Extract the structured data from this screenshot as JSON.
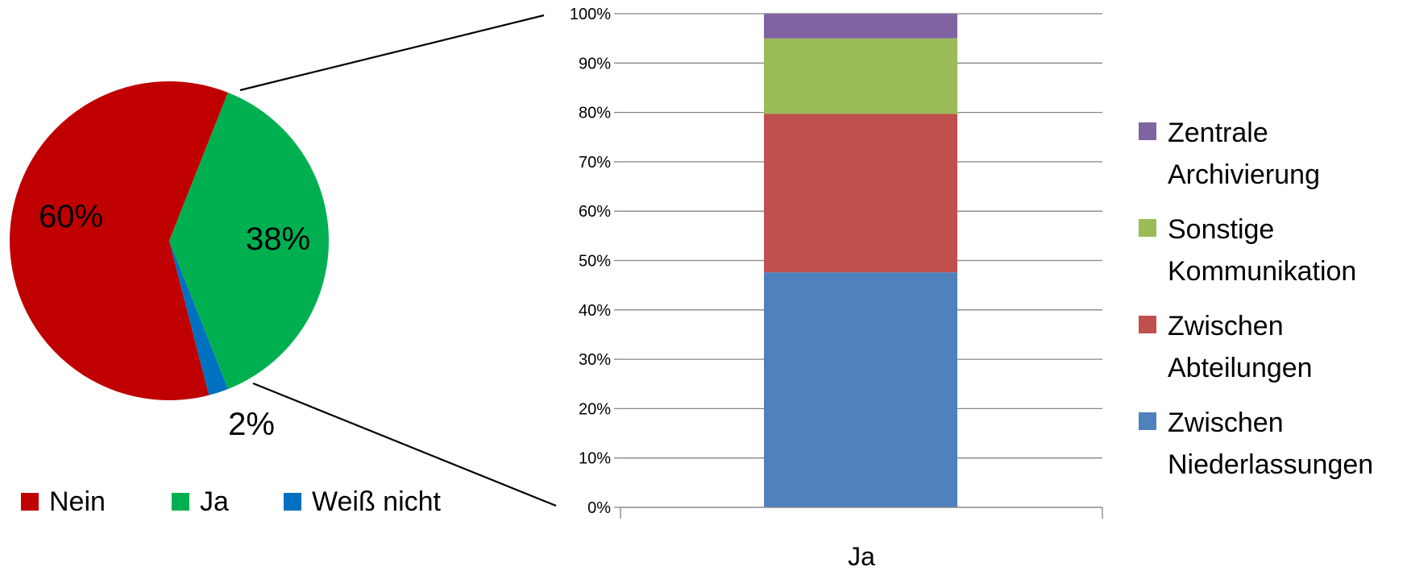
{
  "chart_data": [
    {
      "type": "pie",
      "slices": [
        {
          "label": "Nein",
          "value": 60,
          "color": "#C00000",
          "data_label": "60%"
        },
        {
          "label": "Ja",
          "value": 38,
          "color": "#00B050",
          "data_label": "38%"
        },
        {
          "label": "Weiß nicht",
          "value": 2,
          "color": "#0070C0",
          "data_label": "2%"
        }
      ],
      "legend": {
        "position": "bottom",
        "entries": [
          "Nein",
          "Ja",
          "Weiß nicht"
        ]
      }
    },
    {
      "type": "bar",
      "stacked": true,
      "categories": [
        "Ja"
      ],
      "ylim": [
        0,
        100
      ],
      "yticks": [
        "0%",
        "10%",
        "20%",
        "30%",
        "40%",
        "50%",
        "60%",
        "70%",
        "80%",
        "90%",
        "100%"
      ],
      "grid": true,
      "series": [
        {
          "name": "Zwischen Niederlassungen",
          "name_lines": [
            "Zwischen",
            "Niederlassungen"
          ],
          "values": [
            47.6
          ],
          "color": "#4F81BD"
        },
        {
          "name": "Zwischen Abteilungen",
          "name_lines": [
            "Zwischen",
            "Abteilungen"
          ],
          "values": [
            32.1
          ],
          "color": "#C0504D"
        },
        {
          "name": "Sonstige Kommunikation",
          "name_lines": [
            "Sonstige",
            "Kommunikation"
          ],
          "values": [
            15.3
          ],
          "color": "#9BBB59"
        },
        {
          "name": "Zentrale Archivierung",
          "name_lines": [
            "Zentrale",
            "Archivierung"
          ],
          "values": [
            5.0
          ],
          "color": "#8064A2"
        }
      ],
      "legend": {
        "position": "right",
        "order": "reverse"
      }
    }
  ]
}
